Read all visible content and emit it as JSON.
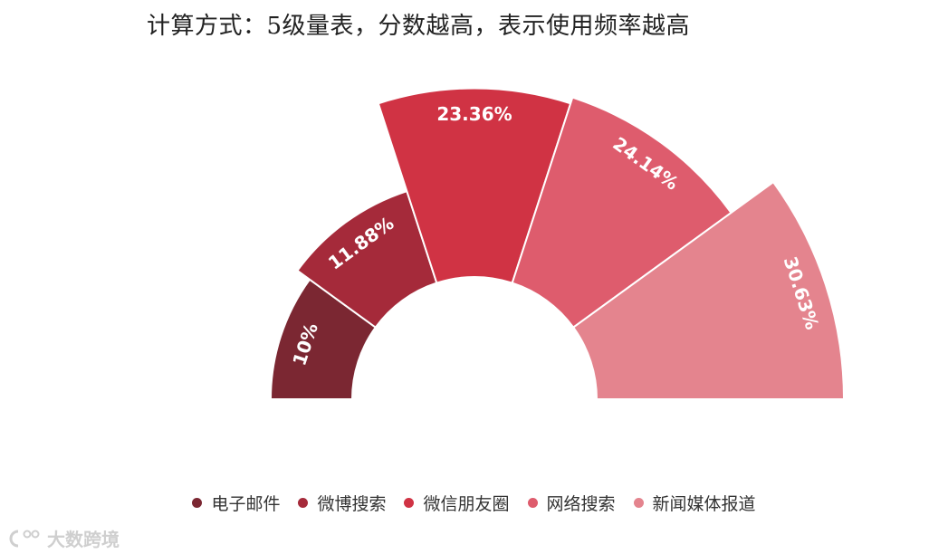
{
  "note": "计算方式：5级量表，分数越高，表示使用频率越高",
  "watermark": "大数跨境",
  "chart_data": {
    "type": "pie",
    "variant": "half-rose",
    "slices": [
      {
        "label": "电子邮件",
        "value": 10,
        "display": "10%",
        "color": "#7b2732"
      },
      {
        "label": "微博搜索",
        "value": 11.88,
        "display": "11.88%",
        "color": "#a52a3a"
      },
      {
        "label": "微信朋友圈",
        "value": 23.36,
        "display": "23.36%",
        "color": "#d03344"
      },
      {
        "label": "网络搜索",
        "value": 24.14,
        "display": "24.14%",
        "color": "#de5c6d"
      },
      {
        "label": "新闻媒体报道",
        "value": 30.63,
        "display": "30.63%",
        "color": "#e4848e"
      }
    ],
    "legend_position": "bottom"
  }
}
